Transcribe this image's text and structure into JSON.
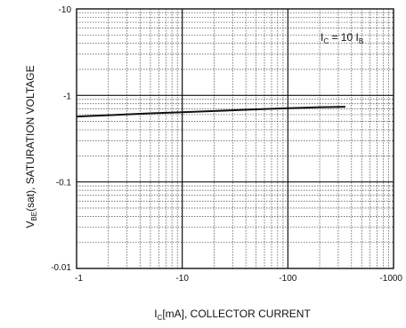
{
  "chart_data": {
    "type": "line",
    "title": "",
    "x_scale": "log",
    "y_scale": "log",
    "xlim": [
      -1,
      -1000
    ],
    "ylim": [
      -0.01,
      -10
    ],
    "x_ticks": [
      "-1",
      "-10",
      "-100",
      "-1000"
    ],
    "y_ticks": [
      "-10",
      "-1",
      "-0.1",
      "-0.01"
    ],
    "xlabel": {
      "main": "I",
      "sub": "C",
      "rest": "[mA], COLLECTOR CURRENT"
    },
    "ylabel": {
      "main": "V",
      "sub": "BE",
      "rest": "(sat), SATURATION VOLTAGE"
    },
    "annotation": {
      "p1": "I",
      "s1": "C",
      "p2": " = 10 I",
      "s2": "B"
    },
    "grid": true,
    "minor_grid": "dotted",
    "series": [
      {
        "x": [
          -1,
          -2,
          -5,
          -10,
          -20,
          -50,
          -100,
          -200,
          -350
        ],
        "y": [
          -0.57,
          -0.59,
          -0.62,
          -0.64,
          -0.66,
          -0.69,
          -0.71,
          -0.73,
          -0.74
        ]
      }
    ],
    "colors": {
      "line": "#111111",
      "grid": "#444444"
    }
  }
}
